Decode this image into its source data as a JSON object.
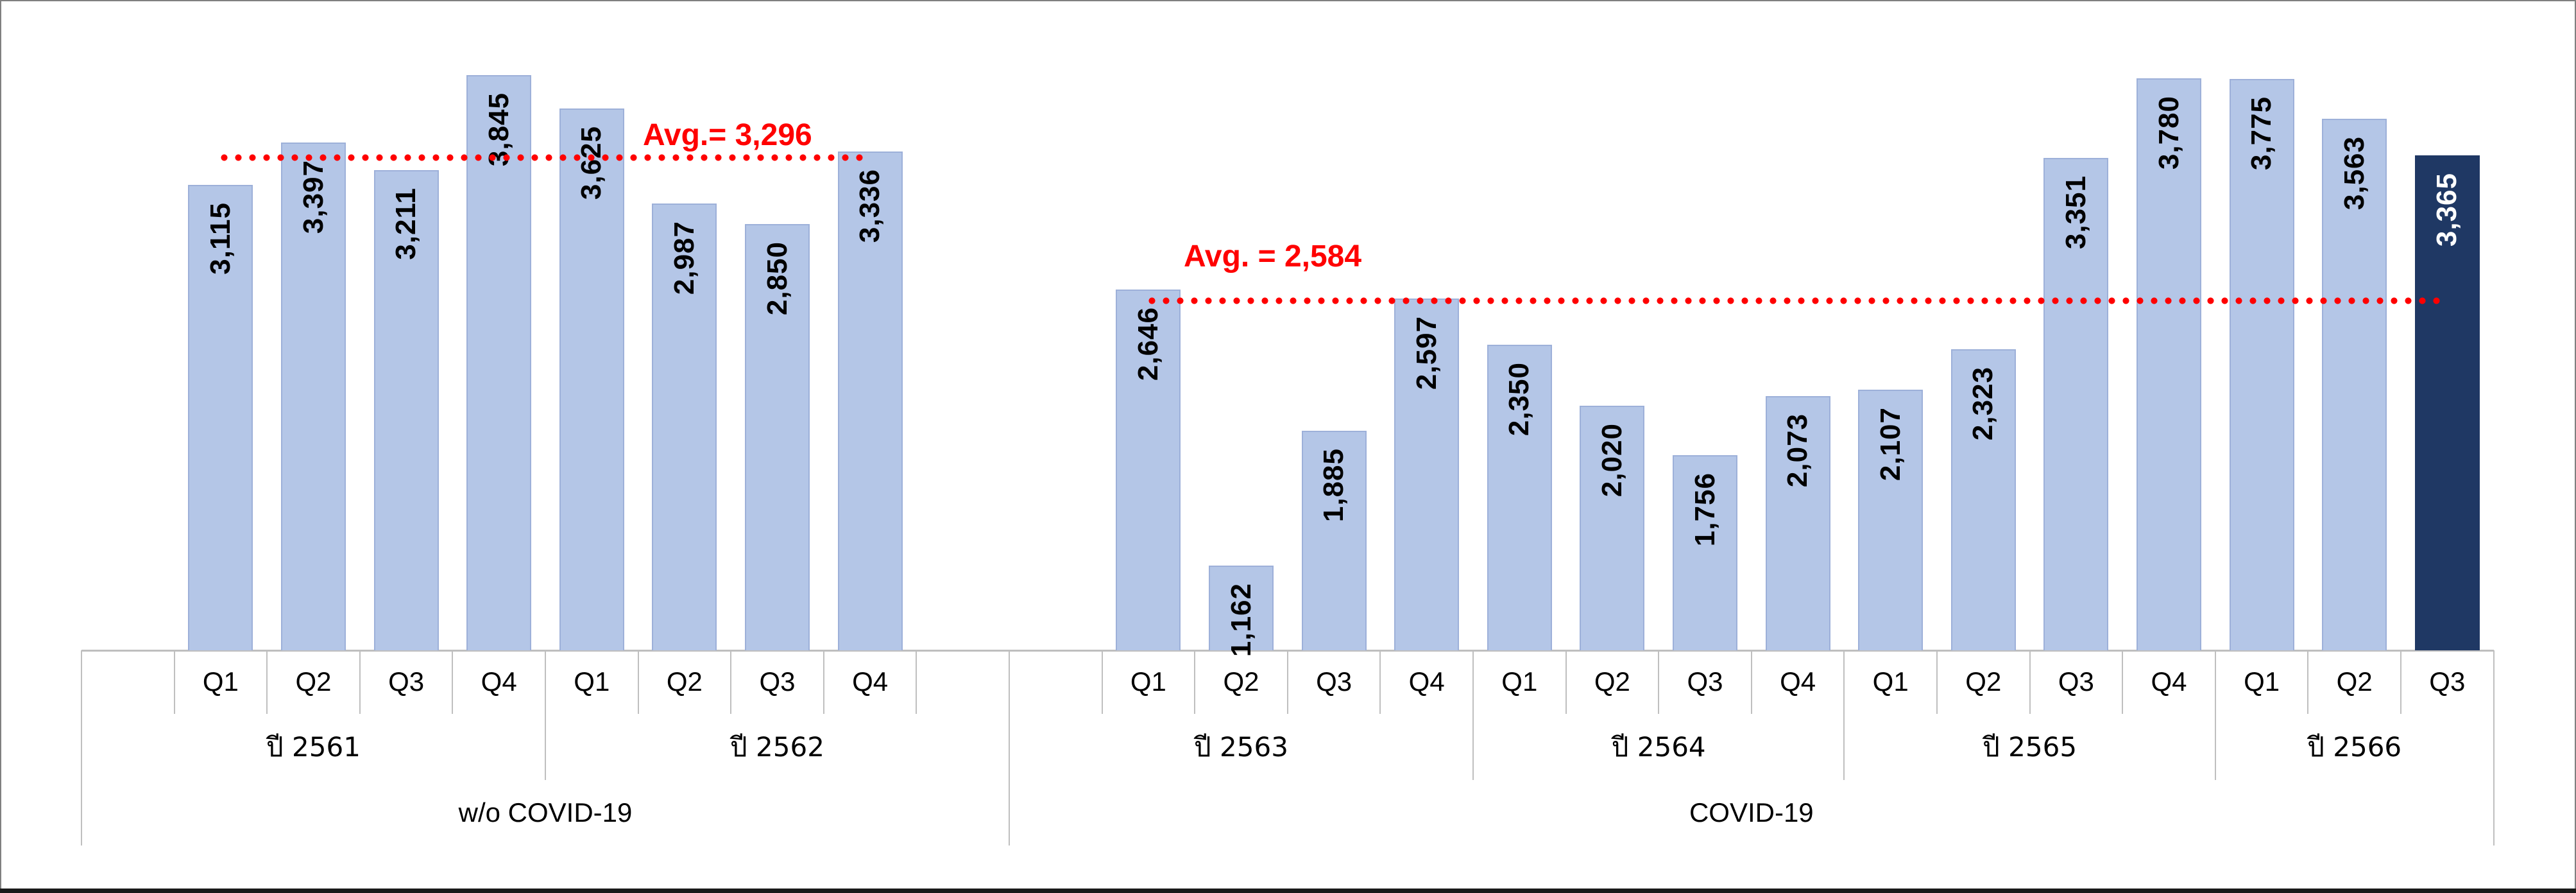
{
  "chart_data": {
    "type": "bar",
    "title": "",
    "grid": "off",
    "legend": null,
    "axes": {
      "value_axis_visible": false,
      "category_levels": [
        "quarter",
        "year",
        "period"
      ],
      "left_chart_value_range": [
        0,
        4350
      ],
      "right_chart_value_range": [
        740,
        4030
      ]
    },
    "groups": [
      {
        "label": "w/o COVID-19",
        "average": {
          "text": "Avg.= 3,296",
          "value": 3296
        },
        "years": [
          {
            "label": "ปี 2561",
            "quarters": [
              "Q1",
              "Q2",
              "Q3",
              "Q4"
            ],
            "values": [
              3115,
              3397,
              3211,
              3845
            ],
            "value_labels": [
              "3,115",
              "3,397",
              "3,211",
              "3,845"
            ]
          },
          {
            "label": "ปี 2562",
            "quarters": [
              "Q1",
              "Q2",
              "Q3",
              "Q4"
            ],
            "values": [
              3625,
              2987,
              2850,
              3336
            ],
            "value_labels": [
              "3,625",
              "2,987",
              "2,850",
              "3,336"
            ]
          }
        ]
      },
      {
        "label": "COVID-19",
        "average": {
          "text": "Avg. = 2,584",
          "value": 2584
        },
        "years": [
          {
            "label": "ปี 2563",
            "quarters": [
              "Q1",
              "Q2",
              "Q3",
              "Q4"
            ],
            "values": [
              2646,
              1162,
              1885,
              2597
            ],
            "value_labels": [
              "2,646",
              "1,162",
              "1,885",
              "2,597"
            ]
          },
          {
            "label": "ปี 2564",
            "quarters": [
              "Q1",
              "Q2",
              "Q3",
              "Q4"
            ],
            "values": [
              2350,
              2020,
              1756,
              2073
            ],
            "value_labels": [
              "2,350",
              "2,020",
              "1,756",
              "2,073"
            ]
          },
          {
            "label": "ปี 2565",
            "quarters": [
              "Q1",
              "Q2",
              "Q3",
              "Q4"
            ],
            "values": [
              2107,
              2323,
              3351,
              3780
            ],
            "value_labels": [
              "2,107",
              "2,323",
              "3,351",
              "3,780"
            ]
          },
          {
            "label": "ปี 2566",
            "quarters": [
              "Q1",
              "Q2",
              "Q3"
            ],
            "values": [
              3775,
              3563,
              3365
            ],
            "value_labels": [
              "3,775",
              "3,563",
              "3,365"
            ],
            "highlight_last": true
          }
        ]
      }
    ]
  },
  "colors": {
    "bar_fill": "#B4C6E7",
    "bar_border": "#9DB0D9",
    "highlight_bar_fill": "#1F3864",
    "value_label": "#000000",
    "highlight_value_label": "#FFFFFF",
    "average_line": "#FF0000",
    "average_label": "#FF0000",
    "axis_lines": "#BFBFBF",
    "background": "#FFFFFF",
    "frame_border": "#808080",
    "frame_border_bottom": "#1A1A1A"
  }
}
